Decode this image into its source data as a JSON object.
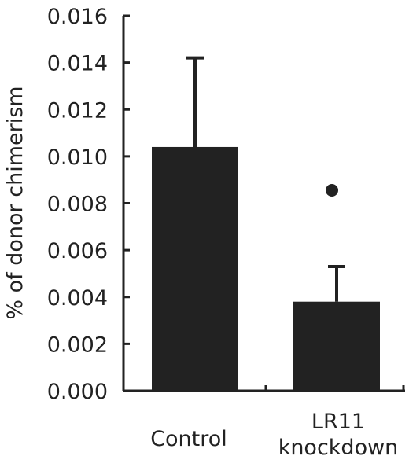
{
  "chart_data": {
    "type": "bar",
    "ylabel": "% of donor chimerism",
    "xlabel": "",
    "title": "",
    "ylim": [
      0,
      0.016
    ],
    "yticks": [
      "0.000",
      "0.002",
      "0.004",
      "0.006",
      "0.008",
      "0.010",
      "0.012",
      "0.014",
      "0.016"
    ],
    "categories": [
      {
        "lines": [
          "Control"
        ]
      },
      {
        "lines": [
          "LR11",
          "knockdown"
        ]
      }
    ],
    "values": [
      0.0104,
      0.0038
    ],
    "error_upper": [
      0.0142,
      0.0053
    ],
    "significance": [
      "",
      "*"
    ],
    "grid": false,
    "legend": "none",
    "colors": {
      "bar": "#222222",
      "axis": "#222222",
      "text": "#222222"
    }
  }
}
